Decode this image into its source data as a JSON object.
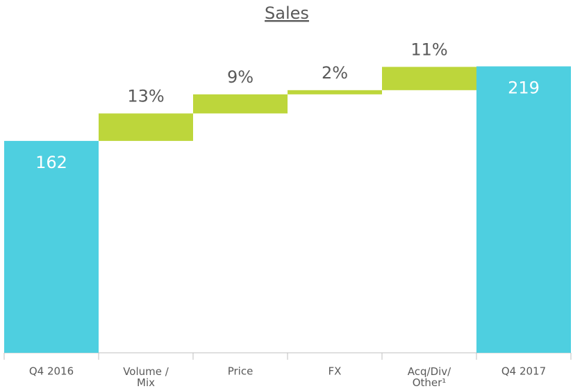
{
  "chart_data": {
    "type": "waterfall",
    "title": "Sales",
    "categories": [
      "Q4 2016",
      "Volume /\nMix",
      "Price",
      "FX",
      "Acq/Div/\nOther¹",
      "Q4 2017"
    ],
    "values": [
      162,
      21,
      14.6,
      3.2,
      17.8,
      219
    ],
    "value_labels": [
      "162",
      "13%",
      "9%",
      "2%",
      "11%",
      "219"
    ],
    "colors": [
      "#4ecfe0",
      "#bdd63b",
      "#bdd63b",
      "#bdd63b",
      "#bdd63b",
      "#4ecfe0"
    ],
    "ylim": [
      0,
      240
    ]
  }
}
